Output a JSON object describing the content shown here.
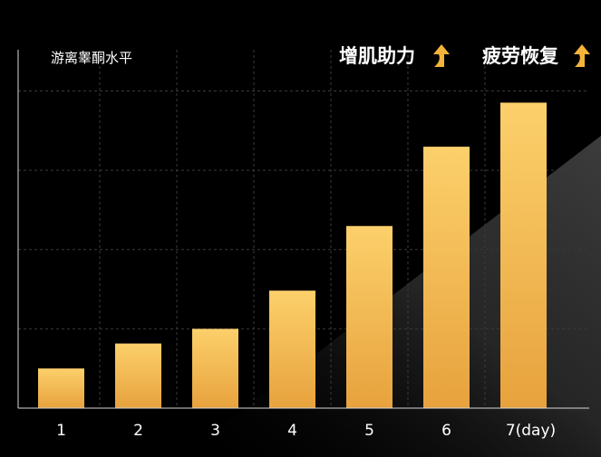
{
  "chart_data": {
    "type": "bar",
    "title": "",
    "xlabel": "",
    "ylabel": "游离睾酮水平",
    "categories": [
      "1",
      "2",
      "3",
      "4",
      "5",
      "6",
      "7(day)"
    ],
    "values": [
      13.5,
      22,
      27,
      40,
      62,
      89,
      104
    ],
    "ylim": [
      0,
      122
    ],
    "grid": true,
    "legend": "none",
    "annotations": [
      {
        "text": "增肌助力",
        "icon": "up-arrow-icon"
      },
      {
        "text": "疲劳恢复",
        "icon": "up-arrow-icon"
      }
    ]
  },
  "colors": {
    "background": "#000000",
    "bar_top": "#fcd06b",
    "bar_bottom": "#e7a23d",
    "arrow": "#f4b43a",
    "grid": "#3a3a3a",
    "axis": "#d9d9d9",
    "text": "#ffffff"
  }
}
